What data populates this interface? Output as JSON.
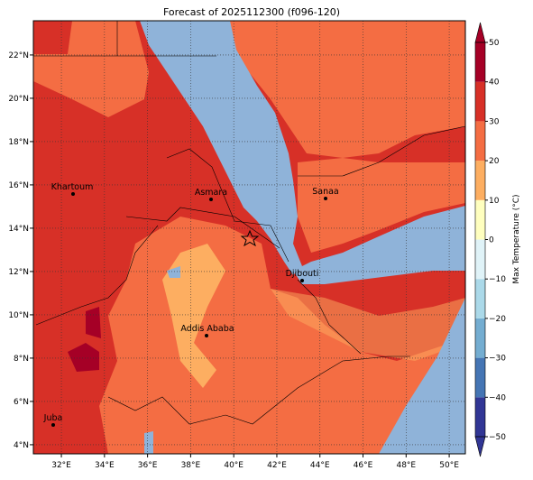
{
  "map": {
    "title": "Forecast of 2025112300 (f096-120)",
    "xlim": [
      30.7,
      50.75
    ],
    "ylim": [
      3.58,
      23.58
    ],
    "xticks": [
      {
        "value": 32,
        "label": "32°E"
      },
      {
        "value": 34,
        "label": "34°E"
      },
      {
        "value": 36,
        "label": "36°E"
      },
      {
        "value": 38,
        "label": "38°E"
      },
      {
        "value": 40,
        "label": "40°E"
      },
      {
        "value": 42,
        "label": "42°E"
      },
      {
        "value": 44,
        "label": "44°E"
      },
      {
        "value": 46,
        "label": "46°E"
      },
      {
        "value": 48,
        "label": "48°E"
      },
      {
        "value": 50,
        "label": "50°E"
      }
    ],
    "yticks": [
      {
        "value": 4,
        "label": "4°N"
      },
      {
        "value": 6,
        "label": "6°N"
      },
      {
        "value": 8,
        "label": "8°N"
      },
      {
        "value": 10,
        "label": "10°N"
      },
      {
        "value": 12,
        "label": "12°N"
      },
      {
        "value": 14,
        "label": "14°N"
      },
      {
        "value": 16,
        "label": "16°N"
      },
      {
        "value": 18,
        "label": "18°N"
      },
      {
        "value": 20,
        "label": "20°N"
      },
      {
        "value": 22,
        "label": "22°N"
      }
    ],
    "grid": true,
    "cities": [
      "Khartoum",
      "Asmara",
      "Sanaa",
      "Djibouti",
      "Addis Ababa",
      "Juba"
    ],
    "colorbar": {
      "label": "Max Temperature (°C)",
      "lim": [
        -50,
        50
      ],
      "ticks": [
        {
          "value": -50,
          "label": "−50"
        },
        {
          "value": -40,
          "label": "−40"
        },
        {
          "value": -30,
          "label": "−30"
        },
        {
          "value": -20,
          "label": "−20"
        },
        {
          "value": -10,
          "label": "−10"
        },
        0,
        10,
        20,
        30,
        40,
        50
      ],
      "colors": [
        "#313695",
        "#4575b4",
        "#74add1",
        "#abd9e9",
        "#e0f3f8",
        "#ffffbf",
        "#fdae61",
        "#f46d43",
        "#d73027",
        "#a50026"
      ]
    }
  }
}
